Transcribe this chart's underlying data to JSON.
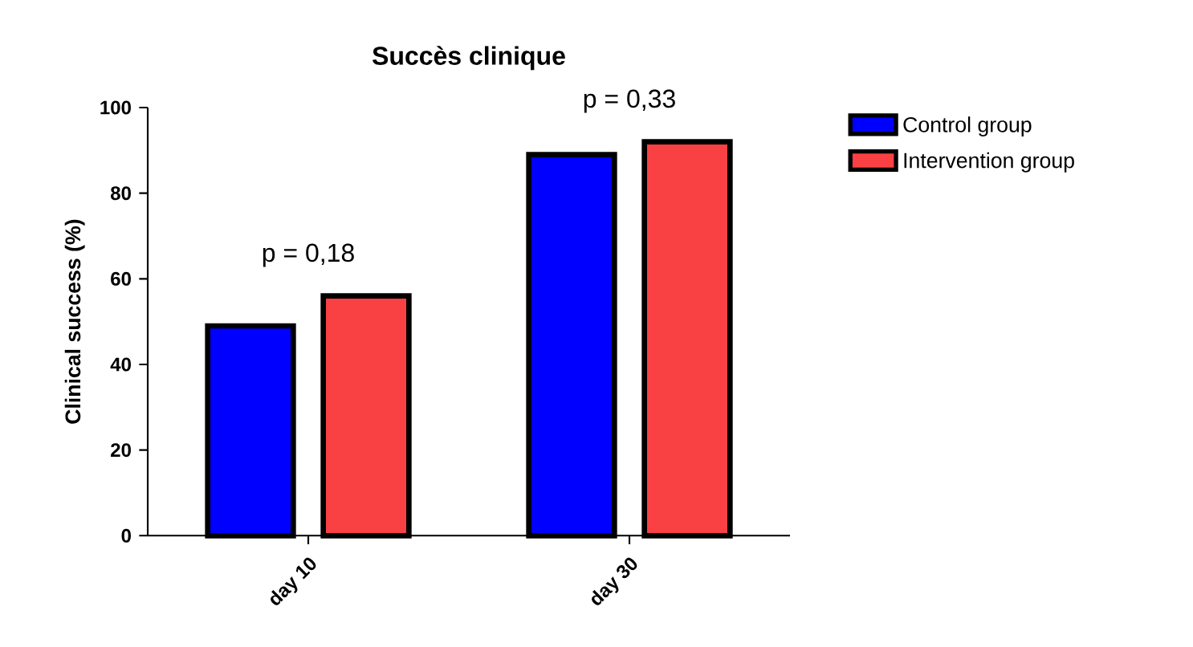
{
  "chart_data": {
    "type": "bar",
    "title": "Succès clinique",
    "ylabel": "Clinical success (%)",
    "categories": [
      "day 10",
      "day 30"
    ],
    "series": [
      {
        "name": "Control group",
        "color": "#0000ff",
        "values": [
          49,
          89
        ]
      },
      {
        "name": "Intervention group",
        "color": "#f94144",
        "values": [
          56,
          92
        ]
      }
    ],
    "ylim": [
      0,
      100
    ],
    "yticks": [
      0,
      20,
      40,
      60,
      80,
      100
    ],
    "grid": false,
    "legend": "top right",
    "annotations": [
      "p = 0,18",
      "p = 0,33"
    ]
  }
}
